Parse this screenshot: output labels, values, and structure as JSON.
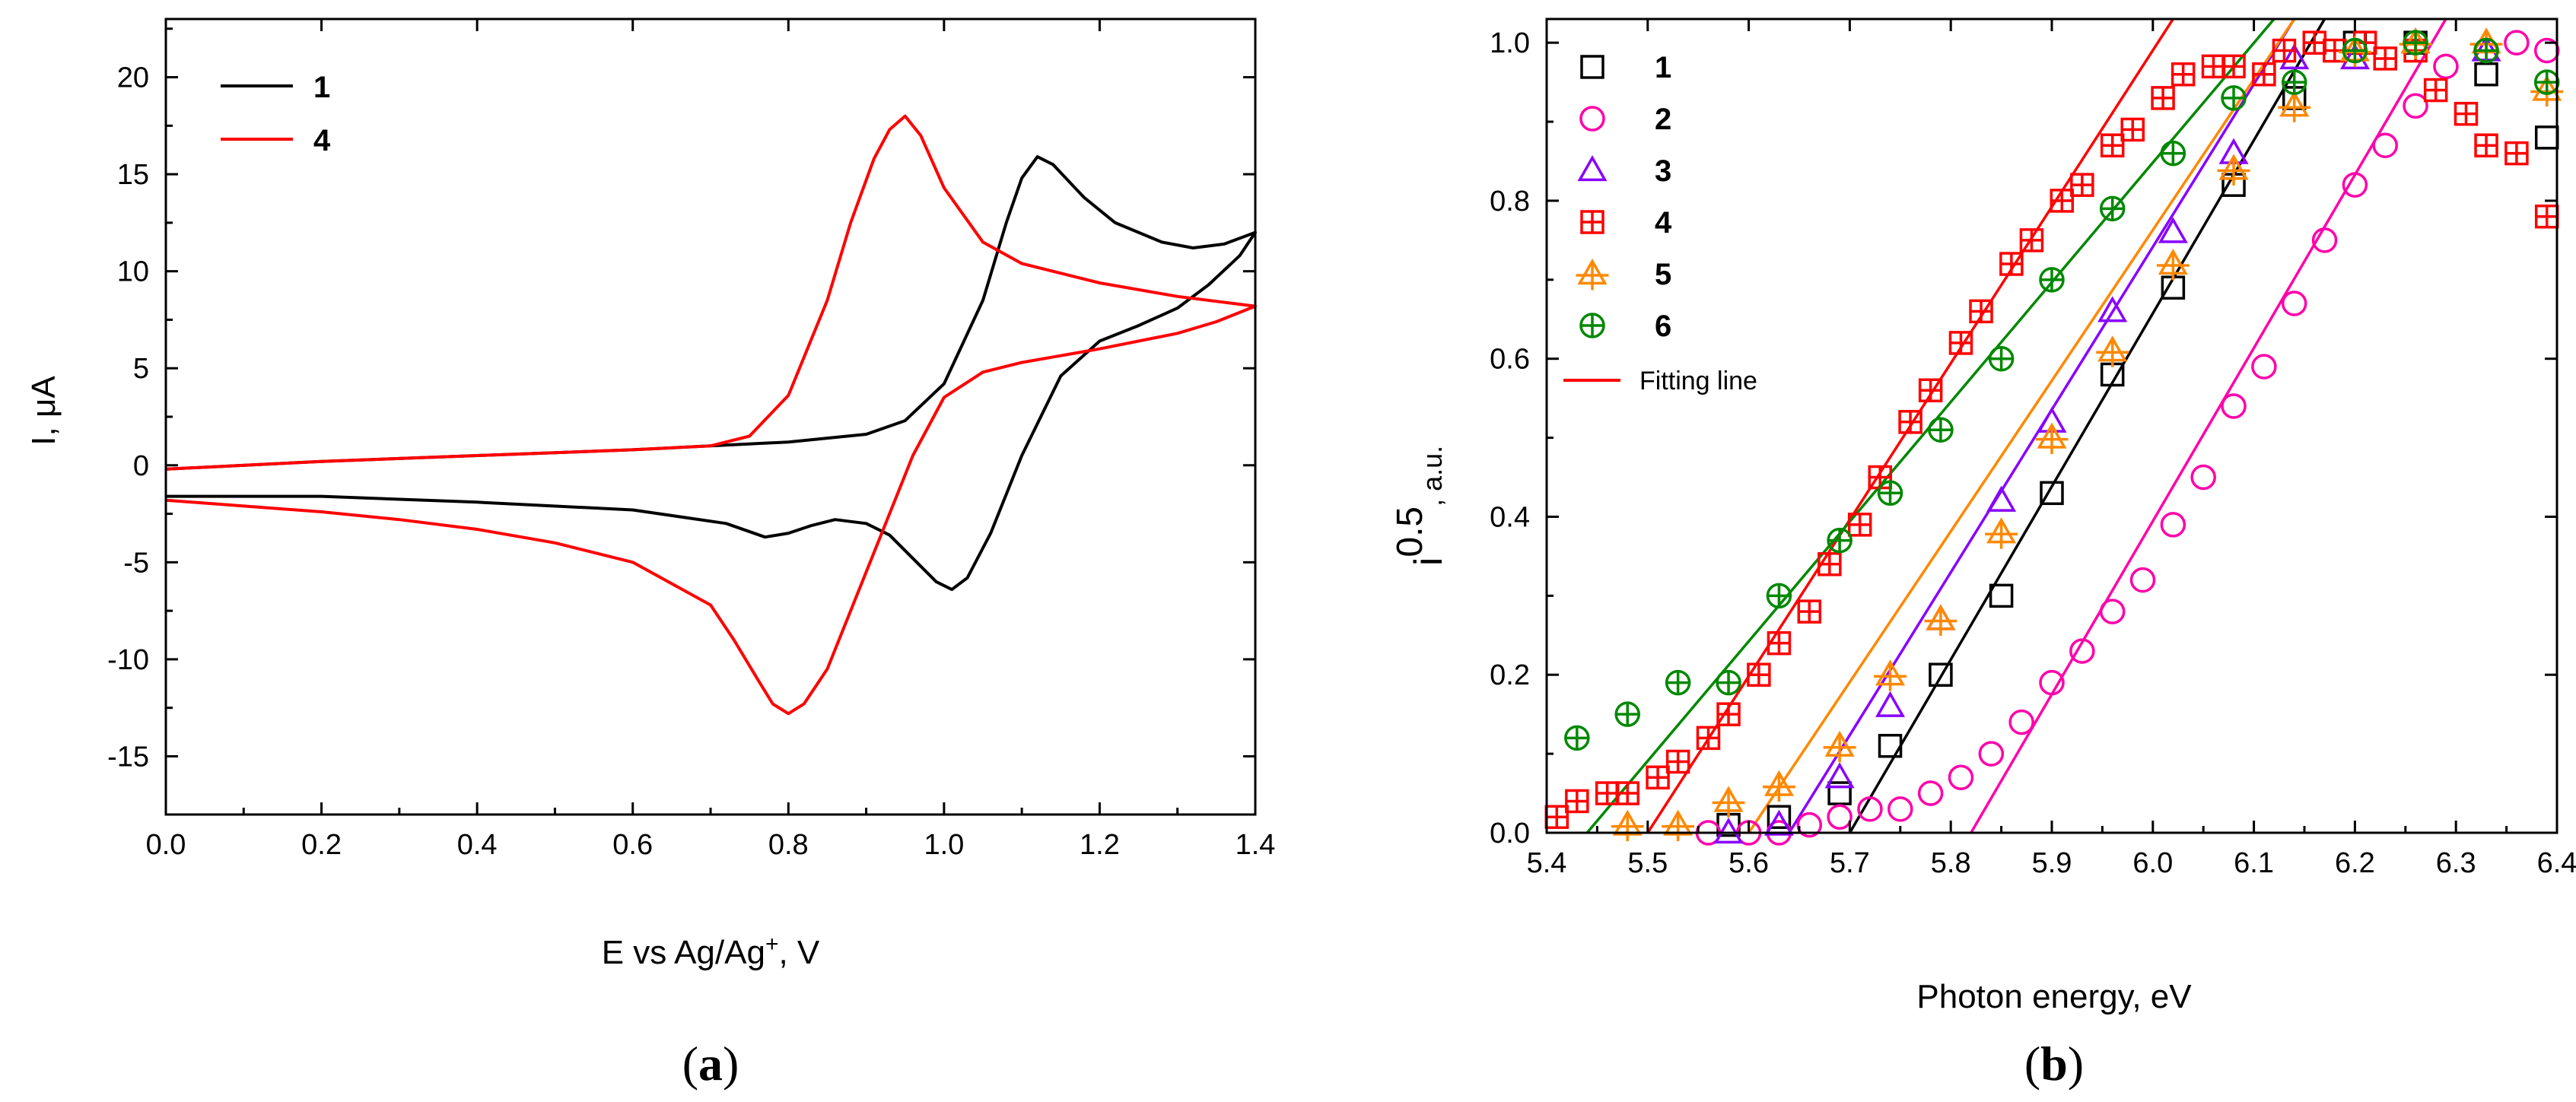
{
  "chart_data": [
    {
      "type": "line",
      "panel_label": "a",
      "xlabel": "E vs Ag/Ag",
      "xlabel_sup": "+",
      "xlabel_suffix": ", V",
      "ylabel": "I, μA",
      "xlim": [
        0,
        1.4
      ],
      "ylim": [
        -18,
        23
      ],
      "x_ticks": [
        0.0,
        0.2,
        0.4,
        0.6,
        0.8,
        1.0,
        1.2,
        1.4
      ],
      "x_tick_labels": [
        "0.0",
        "0.2",
        "0.4",
        "0.6",
        "0.8",
        "1.0",
        "1.2",
        "1.4"
      ],
      "y_ticks": [
        -15,
        -10,
        -5,
        0,
        5,
        10,
        15,
        20
      ],
      "y_tick_labels": [
        "-15",
        "-10",
        "-5",
        "0",
        "5",
        "10",
        "15",
        "20"
      ],
      "legend_position": "top-left",
      "series": [
        {
          "name": "1",
          "color": "#000000",
          "x": [
            0.0,
            0.2,
            0.4,
            0.6,
            0.7,
            0.8,
            0.9,
            0.95,
            1.0,
            1.05,
            1.08,
            1.1,
            1.12,
            1.14,
            1.18,
            1.22,
            1.28,
            1.32,
            1.36,
            1.4,
            1.38,
            1.34,
            1.3,
            1.25,
            1.2,
            1.15,
            1.1,
            1.06,
            1.03,
            1.01,
            0.99,
            0.96,
            0.93,
            0.9,
            0.86,
            0.83,
            0.8,
            0.77,
            0.72,
            0.6,
            0.4,
            0.2,
            0.0
          ],
          "y": [
            -0.2,
            0.2,
            0.5,
            0.8,
            1.0,
            1.2,
            1.6,
            2.3,
            4.2,
            8.5,
            12.5,
            14.8,
            15.9,
            15.5,
            13.8,
            12.5,
            11.5,
            11.2,
            11.4,
            12.0,
            10.8,
            9.3,
            8.1,
            7.2,
            6.4,
            4.6,
            0.5,
            -3.5,
            -5.8,
            -6.4,
            -6.0,
            -4.8,
            -3.6,
            -3.0,
            -2.8,
            -3.1,
            -3.5,
            -3.7,
            -3.0,
            -2.3,
            -1.9,
            -1.6,
            -1.6
          ]
        },
        {
          "name": "4",
          "color": "#ff0000",
          "x": [
            0.0,
            0.2,
            0.4,
            0.6,
            0.7,
            0.75,
            0.8,
            0.85,
            0.88,
            0.91,
            0.93,
            0.95,
            0.97,
            1.0,
            1.05,
            1.1,
            1.2,
            1.3,
            1.4,
            1.35,
            1.3,
            1.2,
            1.1,
            1.05,
            1.0,
            0.96,
            0.92,
            0.88,
            0.85,
            0.82,
            0.8,
            0.78,
            0.76,
            0.73,
            0.7,
            0.6,
            0.5,
            0.4,
            0.3,
            0.2,
            0.1,
            0.0
          ],
          "y": [
            -0.2,
            0.2,
            0.5,
            0.8,
            1.0,
            1.5,
            3.6,
            8.5,
            12.5,
            15.8,
            17.3,
            18.0,
            17.0,
            14.3,
            11.5,
            10.4,
            9.4,
            8.7,
            8.2,
            7.4,
            6.8,
            6.0,
            5.3,
            4.8,
            3.5,
            0.5,
            -3.5,
            -7.5,
            -10.5,
            -12.3,
            -12.8,
            -12.3,
            -11.0,
            -9.0,
            -7.2,
            -5.0,
            -4.0,
            -3.3,
            -2.8,
            -2.4,
            -2.1,
            -1.8
          ]
        }
      ]
    },
    {
      "type": "scatter",
      "panel_label": "b",
      "xlabel": "Photon energy, eV",
      "ylabel": "i",
      "ylabel_sup": "0.5",
      "ylabel_suffix": ", a.u.",
      "xlim": [
        5.4,
        6.4
      ],
      "ylim": [
        0,
        1.03
      ],
      "x_ticks": [
        5.4,
        5.5,
        5.6,
        5.7,
        5.8,
        5.9,
        6.0,
        6.1,
        6.2,
        6.3,
        6.4
      ],
      "x_tick_labels": [
        "5.4",
        "5.5",
        "5.6",
        "5.7",
        "5.8",
        "5.9",
        "6.0",
        "6.1",
        "6.2",
        "6.3",
        "6.4"
      ],
      "y_ticks": [
        0.0,
        0.2,
        0.4,
        0.6,
        0.8,
        1.0
      ],
      "y_tick_labels": [
        "0.0",
        "0.2",
        "0.4",
        "0.6",
        "0.8",
        "1.0"
      ],
      "legend_position": "top-left",
      "fit_legend_label": "Fitting line",
      "fit_legend_color": "#ff0000",
      "series": [
        {
          "name": "1",
          "marker": "square",
          "color": "#000000",
          "fit_color": "#000000",
          "x": [
            5.58,
            5.63,
            5.69,
            5.74,
            5.79,
            5.85,
            5.9,
            5.96,
            6.02,
            6.08,
            6.14,
            6.2,
            6.26,
            6.33,
            6.39
          ],
          "y": [
            0.01,
            0.02,
            0.05,
            0.11,
            0.2,
            0.3,
            0.43,
            0.58,
            0.69,
            0.82,
            0.93,
            1.0,
            1.0,
            0.96,
            0.88
          ],
          "fit": [
            [
              5.7,
              0.0
            ],
            [
              6.17,
              1.03
            ]
          ]
        },
        {
          "name": "2",
          "marker": "circle",
          "color": "#ff00aa",
          "fit_color": "#ff00aa",
          "x": [
            5.56,
            5.6,
            5.63,
            5.66,
            5.69,
            5.72,
            5.75,
            5.78,
            5.81,
            5.84,
            5.87,
            5.9,
            5.93,
            5.96,
            5.99,
            6.02,
            6.05,
            6.08,
            6.11,
            6.14,
            6.17,
            6.2,
            6.23,
            6.26,
            6.29,
            6.33,
            6.36,
            6.39
          ],
          "y": [
            0.0,
            0.0,
            0.0,
            0.01,
            0.02,
            0.03,
            0.03,
            0.05,
            0.07,
            0.1,
            0.14,
            0.19,
            0.23,
            0.28,
            0.32,
            0.39,
            0.45,
            0.54,
            0.59,
            0.67,
            0.75,
            0.82,
            0.87,
            0.92,
            0.97,
            0.99,
            1.0,
            0.99
          ],
          "fit": [
            [
              5.82,
              0.0
            ],
            [
              6.29,
              1.03
            ]
          ]
        },
        {
          "name": "3",
          "marker": "triangle",
          "color": "#8800ff",
          "fit_color": "#8800ff",
          "x": [
            5.58,
            5.63,
            5.69,
            5.74,
            5.79,
            5.85,
            5.9,
            5.96,
            6.02,
            6.08,
            6.14,
            6.2,
            6.26,
            6.33
          ],
          "y": [
            0.0,
            0.01,
            0.07,
            0.16,
            0.27,
            0.42,
            0.52,
            0.66,
            0.76,
            0.86,
            0.98,
            0.98,
            1.0,
            0.99
          ],
          "fit": [
            [
              5.64,
              0.0
            ],
            [
              6.14,
              1.03
            ]
          ]
        },
        {
          "name": "4",
          "marker": "squareplus",
          "color": "#ff0000",
          "fit_color": "#ff0000",
          "x": [
            5.41,
            5.43,
            5.46,
            5.48,
            5.51,
            5.53,
            5.56,
            5.58,
            5.61,
            5.63,
            5.66,
            5.68,
            5.71,
            5.73,
            5.76,
            5.78,
            5.81,
            5.83,
            5.86,
            5.88,
            5.91,
            5.93,
            5.96,
            5.98,
            6.01,
            6.03,
            6.06,
            6.08,
            6.11,
            6.13,
            6.16,
            6.18,
            6.21,
            6.23,
            6.26,
            6.28,
            6.31,
            6.33,
            6.36,
            6.39
          ],
          "y": [
            0.02,
            0.04,
            0.05,
            0.05,
            0.07,
            0.09,
            0.12,
            0.15,
            0.2,
            0.24,
            0.28,
            0.34,
            0.39,
            0.45,
            0.52,
            0.56,
            0.62,
            0.66,
            0.72,
            0.75,
            0.8,
            0.82,
            0.87,
            0.89,
            0.93,
            0.96,
            0.97,
            0.97,
            0.96,
            0.99,
            1.0,
            0.99,
            1.0,
            0.98,
            0.99,
            0.94,
            0.91,
            0.87,
            0.86,
            0.78
          ],
          "fit": [
            [
              5.5,
              0.0
            ],
            [
              6.02,
              1.03
            ]
          ]
        },
        {
          "name": "5",
          "marker": "triangleplus",
          "color": "#ff8800",
          "fit_color": "#ff8800",
          "x": [
            5.48,
            5.53,
            5.58,
            5.63,
            5.69,
            5.74,
            5.79,
            5.85,
            5.9,
            5.96,
            6.02,
            6.08,
            6.14,
            6.2,
            6.26,
            6.33,
            6.39
          ],
          "y": [
            0.01,
            0.01,
            0.04,
            0.06,
            0.11,
            0.2,
            0.27,
            0.38,
            0.5,
            0.61,
            0.72,
            0.84,
            0.92,
            0.99,
            1.0,
            1.0,
            0.94
          ],
          "fit": [
            [
              5.6,
              0.0
            ],
            [
              6.14,
              1.03
            ]
          ]
        },
        {
          "name": "6",
          "marker": "circleplus",
          "color": "#008800",
          "fit_color": "#008800",
          "x": [
            5.43,
            5.48,
            5.53,
            5.58,
            5.63,
            5.69,
            5.74,
            5.79,
            5.85,
            5.9,
            5.96,
            6.02,
            6.08,
            6.14,
            6.2,
            6.26,
            6.33,
            6.39
          ],
          "y": [
            0.12,
            0.15,
            0.19,
            0.19,
            0.3,
            0.37,
            0.43,
            0.51,
            0.6,
            0.7,
            0.79,
            0.86,
            0.93,
            0.95,
            0.99,
            1.0,
            0.99,
            0.95
          ],
          "fit": [
            [
              5.44,
              0.0
            ],
            [
              6.12,
              1.03
            ]
          ]
        }
      ]
    }
  ]
}
